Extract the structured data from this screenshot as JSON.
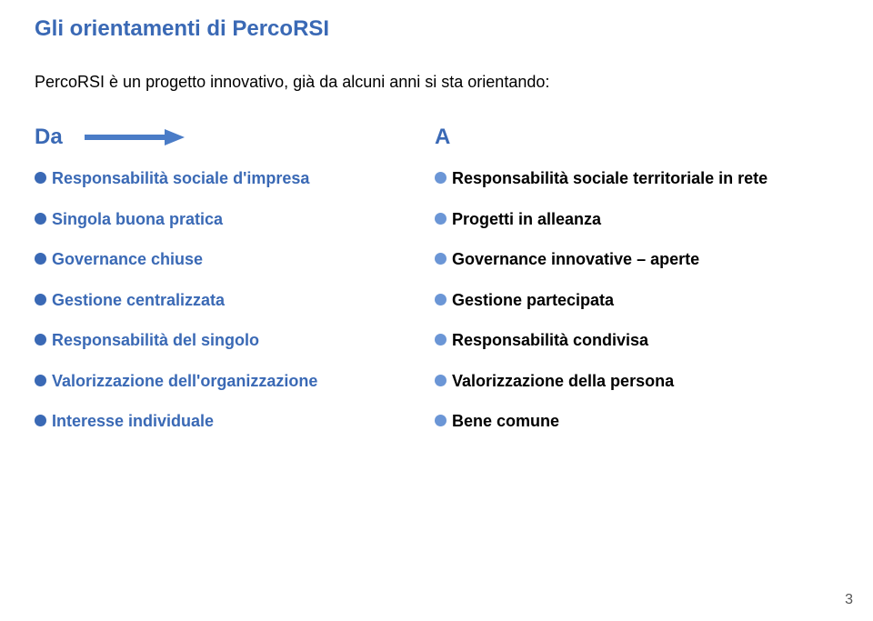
{
  "colors": {
    "title": "#3a69b5",
    "subtitle": "#000000",
    "header": "#3a69b5",
    "bullet_left": "#3a69b5",
    "bullet_right": "#6b96d6",
    "text_left": "#3a69b5",
    "text_right": "#000000",
    "arrow": "#4a7cc7"
  },
  "title": "Gli orientamenti di PercoRSI",
  "subtitle": "PercoRSI è un progetto innovativo, già da alcuni anni si sta orientando:",
  "left": {
    "header": "Da",
    "items": [
      "Responsabilità sociale d'impresa",
      "Singola buona pratica",
      "Governance chiuse",
      "Gestione centralizzata",
      "Responsabilità del singolo",
      "Valorizzazione dell'organizzazione",
      "Interesse individuale"
    ]
  },
  "right": {
    "header": "A",
    "items": [
      "Responsabilità sociale territoriale in rete",
      "Progetti in alleanza",
      "Governance innovative – aperte",
      "Gestione partecipata",
      "Responsabilità condivisa",
      "Valorizzazione della persona",
      "Bene comune"
    ]
  },
  "page_number": "3"
}
